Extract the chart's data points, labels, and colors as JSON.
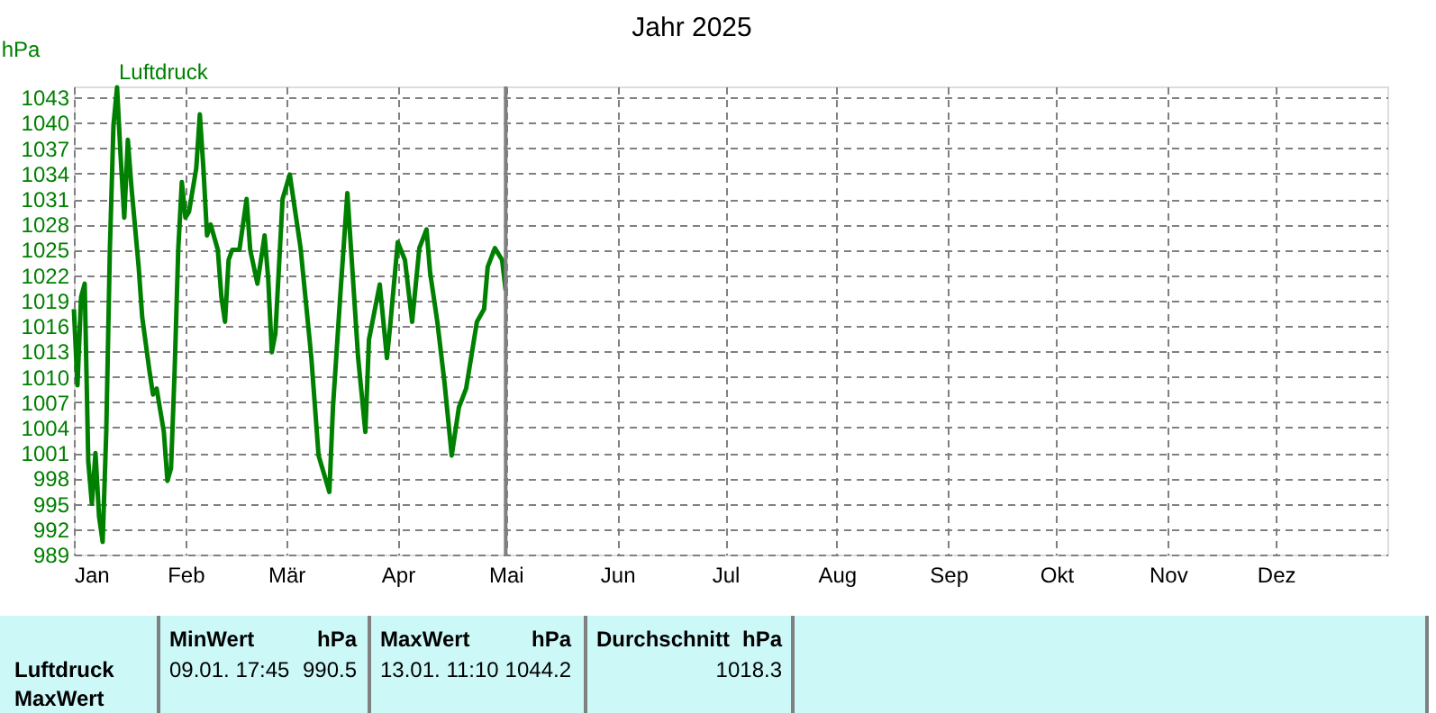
{
  "chart_data": {
    "type": "line",
    "title": "Jahr 2025",
    "ylabel": "hPa",
    "xlim": [
      "2025-01-01",
      "2026-01-01"
    ],
    "xticks": [
      {
        "value": "2025-01-01",
        "label": "Jan"
      },
      {
        "value": "2025-02-01",
        "label": "Feb"
      },
      {
        "value": "2025-03-01",
        "label": "Mär"
      },
      {
        "value": "2025-04-01",
        "label": "Apr"
      },
      {
        "value": "2025-05-01",
        "label": "Mai"
      },
      {
        "value": "2025-06-01",
        "label": "Jun"
      },
      {
        "value": "2025-07-01",
        "label": "Jul"
      },
      {
        "value": "2025-08-01",
        "label": "Aug"
      },
      {
        "value": "2025-09-01",
        "label": "Sep"
      },
      {
        "value": "2025-10-01",
        "label": "Okt"
      },
      {
        "value": "2025-11-01",
        "label": "Nov"
      },
      {
        "value": "2025-12-01",
        "label": "Dez"
      }
    ],
    "ylim": [
      989,
      1044.3
    ],
    "yticks": [
      989,
      992,
      995,
      998,
      1001,
      1004,
      1007,
      1010,
      1013,
      1016,
      1019,
      1022,
      1025,
      1028,
      1031,
      1034,
      1037,
      1040,
      1043
    ],
    "x": [
      "2025-01-01",
      "2025-01-02",
      "2025-01-03",
      "2025-01-04",
      "2025-01-05",
      "2025-01-06",
      "2025-01-07",
      "2025-01-08",
      "2025-01-09",
      "2025-01-10",
      "2025-01-11",
      "2025-01-12",
      "2025-01-13",
      "2025-01-14",
      "2025-01-15",
      "2025-01-16",
      "2025-01-17",
      "2025-01-19",
      "2025-01-20",
      "2025-01-22",
      "2025-01-23",
      "2025-01-24",
      "2025-01-26",
      "2025-01-27",
      "2025-01-28",
      "2025-01-29",
      "2025-01-30",
      "2025-01-31",
      "2025-02-01",
      "2025-02-02",
      "2025-02-04",
      "2025-02-05",
      "2025-02-06",
      "2025-02-07",
      "2025-02-08",
      "2025-02-10",
      "2025-02-11",
      "2025-02-12",
      "2025-02-13",
      "2025-02-14",
      "2025-02-16",
      "2025-02-18",
      "2025-02-19",
      "2025-02-21",
      "2025-02-23",
      "2025-02-24",
      "2025-02-25",
      "2025-02-26",
      "2025-02-28",
      "2025-03-02",
      "2025-03-05",
      "2025-03-08",
      "2025-03-10",
      "2025-03-13",
      "2025-03-14",
      "2025-03-16",
      "2025-03-18",
      "2025-03-19",
      "2025-03-21",
      "2025-03-23",
      "2025-03-24",
      "2025-03-27",
      "2025-03-29",
      "2025-03-30",
      "2025-04-01",
      "2025-04-03",
      "2025-04-05",
      "2025-04-07",
      "2025-04-09",
      "2025-04-10",
      "2025-04-12",
      "2025-04-14",
      "2025-04-16",
      "2025-04-18",
      "2025-04-20",
      "2025-04-23",
      "2025-04-25",
      "2025-04-26",
      "2025-04-28",
      "2025-04-30",
      "2025-05-01"
    ],
    "series": [
      {
        "name": "Luftdruck",
        "color": "#008000",
        "values": [
          1018,
          1009,
          1019.4,
          1021,
          1000,
          995,
          1001,
          993.5,
          990.5,
          1003.5,
          1025,
          1039.7,
          1044.2,
          1036,
          1028.8,
          1038,
          1032.4,
          1023,
          1017,
          1010.7,
          1007.9,
          1008.6,
          1003.5,
          997.7,
          999.2,
          1010.7,
          1025,
          1033,
          1028.8,
          1029.5,
          1034.6,
          1041,
          1034.6,
          1026.7,
          1028,
          1025,
          1019.4,
          1016.5,
          1023.8,
          1025,
          1025,
          1031,
          1025,
          1021,
          1026.7,
          1021.6,
          1012.9,
          1015.1,
          1031,
          1033.9,
          1025.2,
          1012.2,
          1000.7,
          996.4,
          1006.4,
          1019.4,
          1031.7,
          1025.2,
          1012.2,
          1003.5,
          1014.4,
          1020.9,
          1012.2,
          1016.5,
          1025.9,
          1023.8,
          1016.5,
          1025.2,
          1027.4,
          1022.3,
          1016.5,
          1009.3,
          1000.7,
          1006.4,
          1008.6,
          1016.5,
          1018,
          1023,
          1025.2,
          1023.8,
          1020.2
        ]
      }
    ],
    "ref_lines": [
      {
        "axis": "x",
        "value": "2025-05-01",
        "color": "#808080",
        "line_style": "solid"
      }
    ],
    "grid": true,
    "legend": "top left",
    "line_style": "solid",
    "marker": "none",
    "annotations": [
      "Luftdruck",
      "MaxWert",
      "MinWert",
      "hPa",
      "09.01.  17:45",
      "990.5",
      "MaxWert",
      "hPa",
      "13.01.  11:10",
      "1044.2",
      "Durchschnitt",
      "hPa",
      "1018.3"
    ]
  }
}
